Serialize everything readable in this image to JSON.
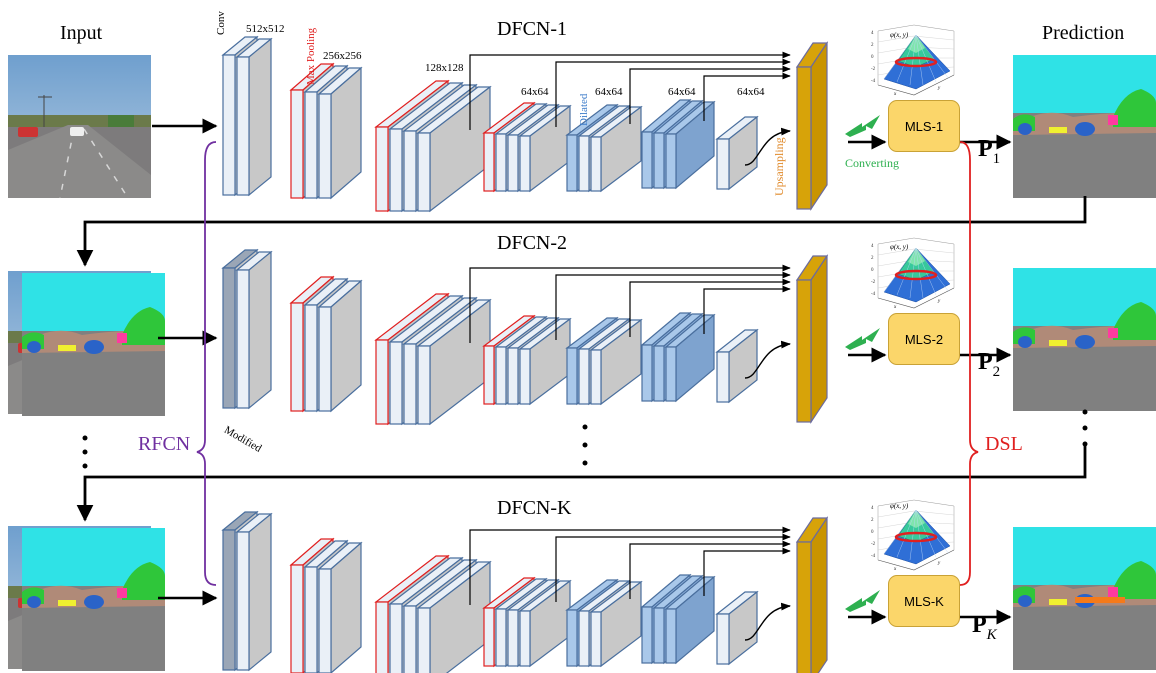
{
  "labels": {
    "input": "Input",
    "prediction": "Prediction",
    "rfcn": "RFCN",
    "dsl": "DSL",
    "modified": "Modified",
    "conv": "Conv",
    "max_pooling": "Max Pooling",
    "dilated": "Dilated",
    "upsampling": "Upsampling",
    "converting": "Converting",
    "size_512": "512x512",
    "size_256": "256x256",
    "size_128": "128x128",
    "size_64": "64x64",
    "phi": "φ(x, y)",
    "axis_x": "x",
    "axis_y": "y"
  },
  "rows": [
    {
      "title": "DFCN-1",
      "mls": "MLS-1",
      "p_main": "P",
      "p_sub": "1"
    },
    {
      "title": "DFCN-2",
      "mls": "MLS-2",
      "p_main": "P",
      "p_sub": "2"
    },
    {
      "title": "DFCN-K",
      "mls": "MLS-K",
      "p_main": "P",
      "p_sub": "K"
    }
  ],
  "colors": {
    "layer_fill": "#eaf0f7",
    "layer_edge": "#4a6f9e",
    "pool_edge": "#e02020",
    "dilated_fill": "#a9c8ea",
    "grey_block": "#c9c9c9",
    "upsample": "#d7a309",
    "mls_fill": "#fbd66a",
    "rfcn": "#7030a0",
    "dsl": "#e02020",
    "converting": "#2eb050",
    "upsampling_text": "#e08a2b",
    "sky": "#2fe2e6",
    "road": "#808080",
    "tree": "#2fc63a",
    "car": "#2a63c8",
    "building": "#b08a78",
    "sign": "#ff3aa0",
    "fence": "#f0f030"
  }
}
